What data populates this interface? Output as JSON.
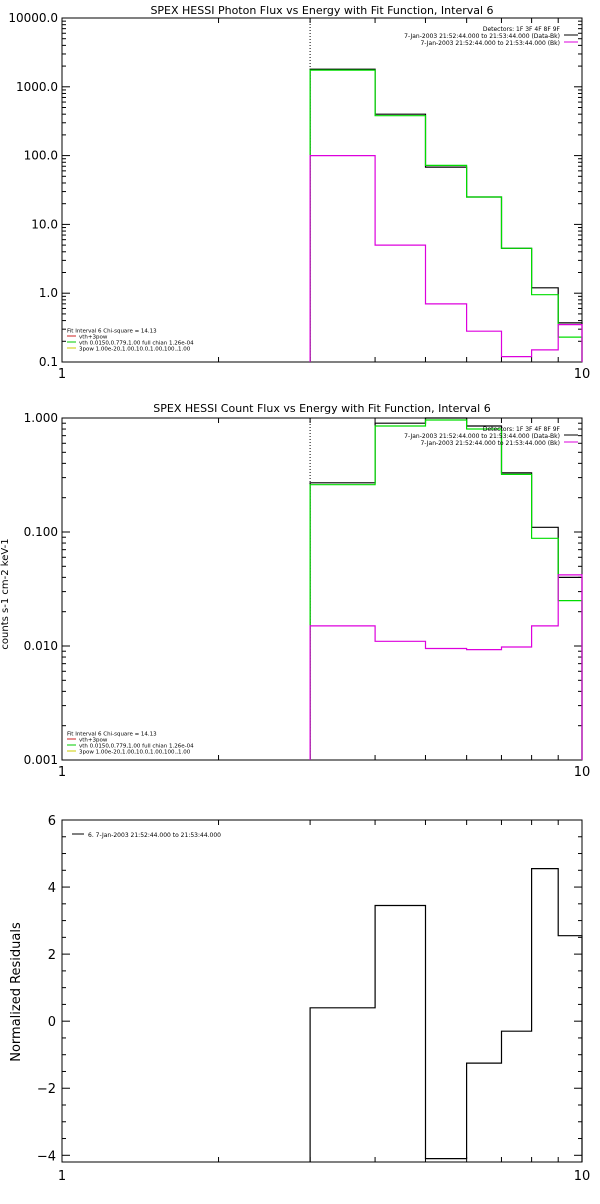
{
  "chart_data": [
    {
      "type": "line",
      "title": "SPEX HESSI Photon Flux vs Energy with Fit Function, Interval 6",
      "xscale": "log",
      "yscale": "log",
      "xlim": [
        1,
        10
      ],
      "ylim": [
        0.1,
        10000
      ],
      "x_tick_labels": [
        "1",
        "10"
      ],
      "y_tick_labels": [
        "0.1",
        "1.0",
        "10.0",
        "100.0",
        "1000.0",
        "10000.0"
      ],
      "marker_x": 3,
      "legend_top": [
        {
          "text": "Detectors: 1F 3F 4F 8F 9F",
          "color": ""
        },
        {
          "text": "7-Jan-2003 21:52:44.000 to 21:53:44.000 (Data-Bk)",
          "color": "#000000"
        },
        {
          "text": "7-Jan-2003 21:52:44.000 to 21:53:44.000 (Bk)",
          "color": "#dd00dd"
        }
      ],
      "legend_fit": [
        {
          "text": "Fit Interval 6   Chi-square = 14.13",
          "color": ""
        },
        {
          "text": "vth+3pow",
          "color": "#cc2020"
        },
        {
          "text": "vth 0.0150,0.779,1.00  full chian 1.26e-04",
          "color": "#00cc00"
        },
        {
          "text": "3pow 1.00e-20,1.00,10.0,1.00,100.,1.00",
          "color": "#cccc00"
        }
      ],
      "series": [
        {
          "color": "#000000",
          "edges": [
            3,
            4,
            5,
            6,
            7,
            8,
            9,
            10
          ],
          "values": [
            1800,
            400,
            68,
            25,
            4.5,
            1.2,
            0.37
          ]
        },
        {
          "color": "#00dd00",
          "edges": [
            3,
            4,
            5,
            6,
            7,
            8,
            9,
            10
          ],
          "values": [
            1750,
            380,
            72,
            25,
            4.5,
            0.95,
            0.23
          ]
        },
        {
          "color": "#dd00dd",
          "edges": [
            3,
            4,
            5,
            6,
            7,
            8,
            9,
            10
          ],
          "values": [
            100,
            5,
            0.7,
            0.28,
            0.12,
            0.15,
            0.35
          ]
        }
      ]
    },
    {
      "type": "line",
      "title": "SPEX HESSI Count Flux vs Energy with Fit Function, Interval 6",
      "ylabel": "counts s-1 cm-2 keV-1",
      "xscale": "log",
      "yscale": "log",
      "xlim": [
        1,
        10
      ],
      "ylim": [
        0.001,
        1
      ],
      "x_tick_labels": [
        "1",
        "10"
      ],
      "y_tick_labels": [
        "0.001",
        "0.010",
        "0.100",
        "1.000"
      ],
      "marker_x": 3,
      "legend_top": [
        {
          "text": "Detectors: 1F 3F 4F 8F 9F",
          "color": ""
        },
        {
          "text": "7-Jan-2003 21:52:44.000 to 21:53:44.000 (Data-Bk)",
          "color": "#000000"
        },
        {
          "text": "7-Jan-2003 21:52:44.000 to 21:53:44.000 (Bk)",
          "color": "#dd00dd"
        }
      ],
      "legend_fit": [
        {
          "text": "Fit Interval 6   Chi-square = 14.13",
          "color": ""
        },
        {
          "text": "vth+3pow",
          "color": "#cc2020"
        },
        {
          "text": "vth 0.0150,0.779,1.00  full chian 1.26e-04",
          "color": "#00cc00"
        },
        {
          "text": "3pow 1.00e-20,1.00,10.0,1.00,100.,1.00",
          "color": "#cccc00"
        }
      ],
      "series": [
        {
          "color": "#000000",
          "edges": [
            3,
            4,
            5,
            6,
            7,
            8,
            9,
            10
          ],
          "values": [
            0.27,
            0.9,
            1.0,
            0.85,
            0.33,
            0.11,
            0.04
          ]
        },
        {
          "color": "#00dd00",
          "edges": [
            3,
            4,
            5,
            6,
            7,
            8,
            9,
            10
          ],
          "values": [
            0.26,
            0.85,
            0.96,
            0.8,
            0.32,
            0.088,
            0.025
          ]
        },
        {
          "color": "#dd00dd",
          "edges": [
            3,
            4,
            5,
            6,
            7,
            8,
            9,
            10
          ],
          "values": [
            0.015,
            0.011,
            0.0095,
            0.0093,
            0.0098,
            0.015,
            0.042
          ]
        }
      ]
    },
    {
      "type": "line",
      "title": "",
      "ylabel": "Normalized Residuals",
      "xscale": "log",
      "yscale": "linear",
      "xlim": [
        1,
        10
      ],
      "ylim": [
        -4.2,
        6
      ],
      "x_tick_labels": [
        "1",
        "10"
      ],
      "y_tick_labels": [
        "−4",
        "−2",
        "0",
        "2",
        "4",
        "6"
      ],
      "legend_top": [
        {
          "text": "6.  7-Jan-2003 21:52:44.000 to 21:53:44.000",
          "color": "#000000"
        }
      ],
      "series": [
        {
          "color": "#000000",
          "edges": [
            3,
            4,
            5,
            6,
            7,
            8,
            9,
            10
          ],
          "values": [
            0.4,
            3.45,
            -4.1,
            -1.25,
            -0.3,
            4.55,
            2.55
          ]
        }
      ]
    }
  ]
}
